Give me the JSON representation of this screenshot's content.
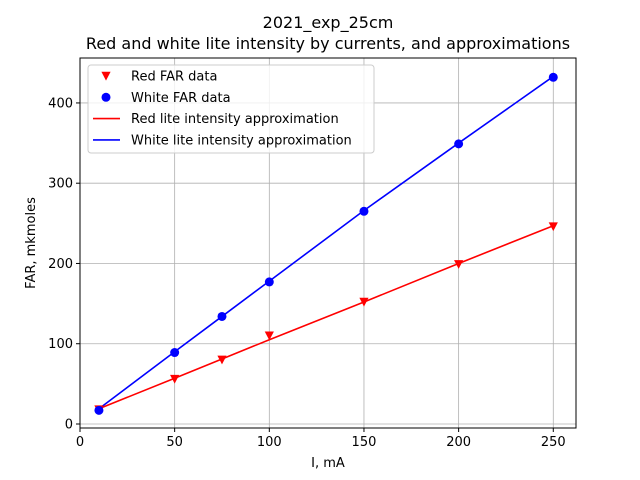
{
  "chart_data": {
    "type": "line",
    "title_line1": "2021_exp_25cm",
    "title_line2": "Red and white lite intensity by currents, and approximations",
    "xlabel": "I, mA",
    "ylabel": "FAR, mkmoles",
    "xlim": [
      0,
      262
    ],
    "ylim": [
      -5,
      456
    ],
    "xticks": [
      0,
      50,
      100,
      150,
      200,
      250
    ],
    "yticks": [
      0,
      100,
      200,
      300,
      400
    ],
    "grid": true,
    "legend_position": "top-left",
    "series": [
      {
        "name": "Red FAR data",
        "kind": "markers",
        "marker": "triangle-down",
        "color": "#ff0000",
        "x": [
          10,
          50,
          75,
          100,
          150,
          200,
          250
        ],
        "y": [
          18,
          56,
          80,
          110,
          152,
          199,
          246
        ]
      },
      {
        "name": "White FAR data",
        "kind": "markers",
        "marker": "circle",
        "color": "#0000ff",
        "x": [
          10,
          50,
          75,
          100,
          150,
          200,
          250
        ],
        "y": [
          17,
          89,
          134,
          177,
          265,
          349,
          432
        ]
      },
      {
        "name": "Red lite intensity approximation",
        "kind": "line",
        "color": "#ff0000",
        "x": [
          10,
          50,
          75,
          100,
          150,
          200,
          250
        ],
        "y": [
          19,
          57,
          81,
          105,
          152,
          200,
          247
        ]
      },
      {
        "name": "White lite intensity approximation",
        "kind": "line",
        "color": "#0000ff",
        "x": [
          10,
          50,
          75,
          100,
          150,
          200,
          250
        ],
        "y": [
          19,
          90,
          134,
          178,
          266,
          350,
          433
        ]
      }
    ]
  }
}
